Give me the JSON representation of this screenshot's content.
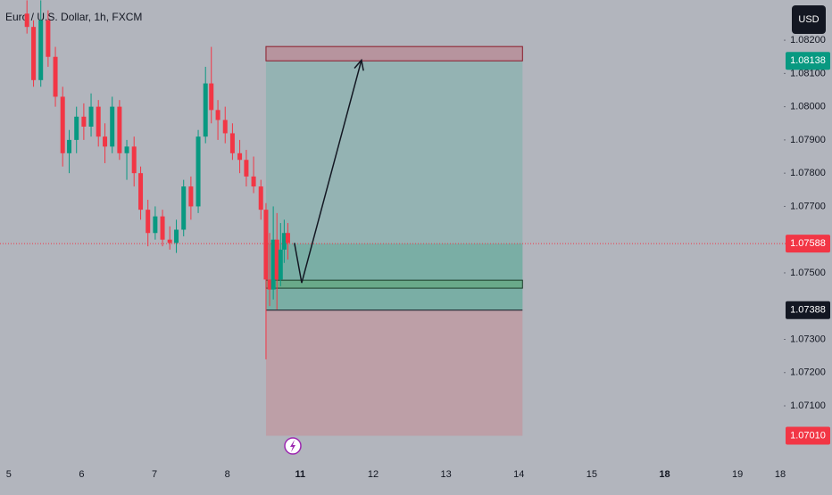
{
  "chart_data": {
    "type": "candlestick",
    "title": "Euro / U.S. Dollar, 1h, FXCM",
    "currency": "USD",
    "up_color": "#089981",
    "down_color": "#f23645",
    "x": [
      0.25,
      0.34,
      0.44,
      0.54,
      0.64,
      0.74,
      0.83,
      0.93,
      1.03,
      1.13,
      1.23,
      1.32,
      1.42,
      1.52,
      1.62,
      1.72,
      1.81,
      1.91,
      2.01,
      2.11,
      2.21,
      2.3,
      2.4,
      2.5,
      2.6,
      2.7,
      2.78,
      2.87,
      2.97,
      3.07,
      3.17,
      3.26,
      3.36,
      3.46,
      3.53,
      3.58,
      3.63,
      3.68,
      3.73,
      3.78,
      3.83
    ],
    "open": [
      1.0828,
      1.0824,
      1.0808,
      1.0826,
      1.0815,
      1.0803,
      1.0786,
      1.079,
      1.0797,
      1.0794,
      1.08,
      1.0791,
      1.0788,
      1.08,
      1.0786,
      1.0788,
      1.078,
      1.0769,
      1.0762,
      1.0767,
      1.076,
      1.0759,
      1.0763,
      1.0776,
      1.077,
      1.0791,
      1.0807,
      1.0799,
      1.0796,
      1.0792,
      1.0786,
      1.0784,
      1.0779,
      1.0776,
      1.0769,
      1.0748,
      1.0745,
      1.076,
      1.0748,
      1.0757,
      1.0762
    ],
    "high": [
      1.0832,
      1.0826,
      1.0832,
      1.0829,
      1.0818,
      1.0806,
      1.0793,
      1.08,
      1.0801,
      1.0804,
      1.0802,
      1.0795,
      1.0803,
      1.0802,
      1.079,
      1.0791,
      1.0782,
      1.0772,
      1.077,
      1.0769,
      1.0764,
      1.0766,
      1.0778,
      1.0779,
      1.0793,
      1.0812,
      1.0818,
      1.0802,
      1.08,
      1.0795,
      1.079,
      1.0787,
      1.0785,
      1.0778,
      1.0771,
      1.0762,
      1.077,
      1.0768,
      1.0765,
      1.0766,
      1.0765
    ],
    "low": [
      1.0822,
      1.0806,
      1.0806,
      1.0812,
      1.08,
      1.0782,
      1.078,
      1.0786,
      1.079,
      1.0791,
      1.0788,
      1.0783,
      1.0786,
      1.0784,
      1.0778,
      1.0776,
      1.0766,
      1.0758,
      1.076,
      1.0758,
      1.0757,
      1.0756,
      1.0761,
      1.0766,
      1.0768,
      1.0789,
      1.0795,
      1.079,
      1.0789,
      1.0784,
      1.078,
      1.0776,
      1.0774,
      1.0766,
      1.0724,
      1.074,
      1.0742,
      1.0739,
      1.0746,
      1.0753,
      1.0754
    ],
    "close": [
      1.0824,
      1.0808,
      1.0826,
      1.0815,
      1.0803,
      1.0786,
      1.079,
      1.0797,
      1.0794,
      1.08,
      1.0791,
      1.0788,
      1.08,
      1.0786,
      1.0788,
      1.078,
      1.0769,
      1.0762,
      1.0767,
      1.076,
      1.0759,
      1.0763,
      1.0776,
      1.077,
      1.0791,
      1.0807,
      1.0799,
      1.0796,
      1.0792,
      1.0786,
      1.0784,
      1.0779,
      1.0776,
      1.0769,
      1.0748,
      1.0745,
      1.076,
      1.0748,
      1.0757,
      1.0762,
      1.0759
    ],
    "xlim": [
      -0.12,
      10.66
    ],
    "ylim": [
      1.06931,
      1.08321
    ],
    "xticks": [
      {
        "value": 0,
        "label": "5"
      },
      {
        "value": 1,
        "label": "6"
      },
      {
        "value": 2,
        "label": "7"
      },
      {
        "value": 3,
        "label": "8"
      },
      {
        "value": 4,
        "label": "11",
        "bold": true
      },
      {
        "value": 5,
        "label": "12"
      },
      {
        "value": 6,
        "label": "13"
      },
      {
        "value": 7,
        "label": "14"
      },
      {
        "value": 8,
        "label": "15"
      },
      {
        "value": 9,
        "label": "18",
        "bold": true
      },
      {
        "value": 10,
        "label": "19"
      },
      {
        "value": 10.66,
        "label": "18"
      }
    ],
    "yticks": [
      {
        "value": 1.082,
        "label": "1.08200"
      },
      {
        "value": 1.081,
        "label": "1.08100"
      },
      {
        "value": 1.08,
        "label": "1.08000"
      },
      {
        "value": 1.079,
        "label": "1.07900"
      },
      {
        "value": 1.078,
        "label": "1.07800"
      },
      {
        "value": 1.077,
        "label": "1.07700"
      },
      {
        "value": 1.075,
        "label": "1.07500"
      },
      {
        "value": 1.073,
        "label": "1.07300"
      },
      {
        "value": 1.072,
        "label": "1.07200"
      },
      {
        "value": 1.071,
        "label": "1.07100"
      }
    ],
    "last_price": 1.07588,
    "position": {
      "x_start": 3.53,
      "x_end": 7.05,
      "target": 1.08138,
      "target_box_top": 1.08181,
      "entry": 1.07388,
      "stop": {
        "value": 1.0701,
        "label": "1.07010"
      }
    },
    "entry_box": {
      "x_start": 3.53,
      "x_end": 7.05,
      "top": 1.07478,
      "bottom": 1.07454
    },
    "arrow": {
      "x": [
        3.92,
        4.02,
        4.84
      ],
      "y": [
        1.0759,
        1.0747,
        1.0814
      ]
    }
  }
}
